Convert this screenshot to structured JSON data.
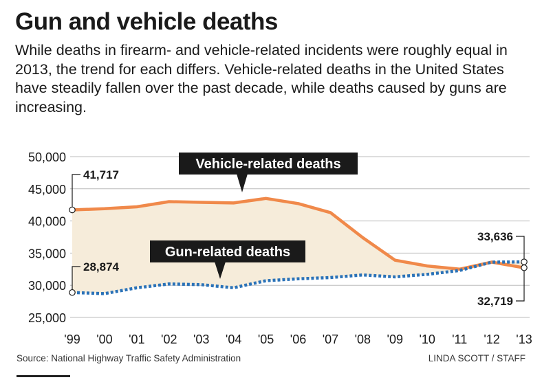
{
  "header": {
    "title": "Gun and vehicle deaths",
    "subtitle": "While deaths in firearm- and vehicle-related incidents were roughly equal in 2013, the trend for each differs. Vehicle-related deaths in the United States have steadily fallen over the past decade, while deaths caused by guns are increasing."
  },
  "footer": {
    "source": "Source: National Highway Traffic Safety Administration",
    "credit": "LINDA SCOTT / STAFF"
  },
  "colors": {
    "vehicle_line": "#f0894a",
    "gun_line": "#2a72b8",
    "fill_between": "#f6ecda",
    "label_box": "#1a1a1a",
    "label_text": "#ffffff",
    "grid": "#bbbbbb"
  },
  "chart_data": {
    "type": "line",
    "title": "Gun and vehicle deaths",
    "x": [
      "'99",
      "'00",
      "'01",
      "'02",
      "'03",
      "'04",
      "'05",
      "'06",
      "'07",
      "'08",
      "'09",
      "'10",
      "'11",
      "'12",
      "'13"
    ],
    "ylim": [
      25000,
      50000
    ],
    "yticks": [
      25000,
      30000,
      35000,
      40000,
      45000,
      50000
    ],
    "ytick_labels": [
      "25,000",
      "30,000",
      "35,000",
      "40,000",
      "45,000",
      "50,000"
    ],
    "grid": true,
    "series": [
      {
        "name": "Vehicle-related deaths",
        "style": "solid",
        "values": [
          41717,
          41900,
          42200,
          43000,
          42900,
          42800,
          43500,
          42700,
          41300,
          37400,
          33900,
          33000,
          32500,
          33600,
          32719
        ]
      },
      {
        "name": "Gun-related deaths",
        "style": "dotted",
        "values": [
          28874,
          28700,
          29600,
          30200,
          30100,
          29600,
          30700,
          31000,
          31200,
          31600,
          31300,
          31700,
          32300,
          33600,
          33636
        ]
      }
    ],
    "annotations": [
      {
        "series": 0,
        "index": 0,
        "text": "41,717"
      },
      {
        "series": 1,
        "index": 0,
        "text": "28,874"
      },
      {
        "series": 1,
        "index": 14,
        "text": "33,636"
      },
      {
        "series": 0,
        "index": 14,
        "text": "32,719"
      }
    ]
  }
}
